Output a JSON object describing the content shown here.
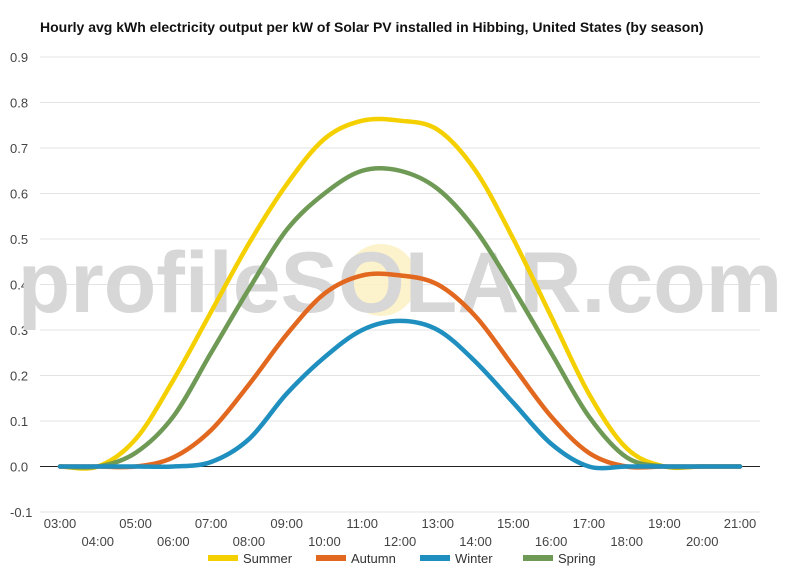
{
  "chart_data": {
    "type": "line",
    "title": "Hourly avg kWh electricity output per kW of Solar PV installed in Hibbing, United States (by season)",
    "xlabel": "",
    "ylabel": "",
    "ylim": [
      -0.1,
      0.9
    ],
    "yticks": [
      "-0.1",
      "0.0",
      "0.1",
      "0.2",
      "0.3",
      "0.4",
      "0.5",
      "0.6",
      "0.7",
      "0.8",
      "0.9"
    ],
    "x": [
      "03:00",
      "04:00",
      "05:00",
      "06:00",
      "07:00",
      "08:00",
      "09:00",
      "10:00",
      "11:00",
      "12:00",
      "13:00",
      "14:00",
      "15:00",
      "16:00",
      "17:00",
      "18:00",
      "19:00",
      "20:00",
      "21:00"
    ],
    "grid": true,
    "legend_position": "bottom",
    "watermark": "profileSOLAR.com",
    "series": [
      {
        "name": "Summer",
        "color": "#f5d000",
        "values": [
          0.0,
          0.0,
          0.06,
          0.19,
          0.34,
          0.49,
          0.62,
          0.72,
          0.76,
          0.76,
          0.74,
          0.65,
          0.5,
          0.33,
          0.16,
          0.04,
          0.0,
          0.0,
          0.0
        ]
      },
      {
        "name": "Autumn",
        "color": "#e2681f",
        "values": [
          0.0,
          0.0,
          0.0,
          0.02,
          0.08,
          0.18,
          0.29,
          0.38,
          0.42,
          0.42,
          0.4,
          0.33,
          0.22,
          0.11,
          0.03,
          0.0,
          0.0,
          0.0,
          0.0
        ]
      },
      {
        "name": "Winter",
        "color": "#1f8fbf",
        "values": [
          0.0,
          0.0,
          0.0,
          0.0,
          0.01,
          0.06,
          0.16,
          0.24,
          0.3,
          0.32,
          0.3,
          0.23,
          0.14,
          0.05,
          0.0,
          0.0,
          0.0,
          0.0,
          0.0
        ]
      },
      {
        "name": "Spring",
        "color": "#6e9a55",
        "values": [
          0.0,
          0.0,
          0.03,
          0.11,
          0.25,
          0.39,
          0.52,
          0.6,
          0.65,
          0.65,
          0.61,
          0.52,
          0.39,
          0.25,
          0.11,
          0.02,
          0.0,
          0.0,
          0.0
        ]
      }
    ]
  }
}
